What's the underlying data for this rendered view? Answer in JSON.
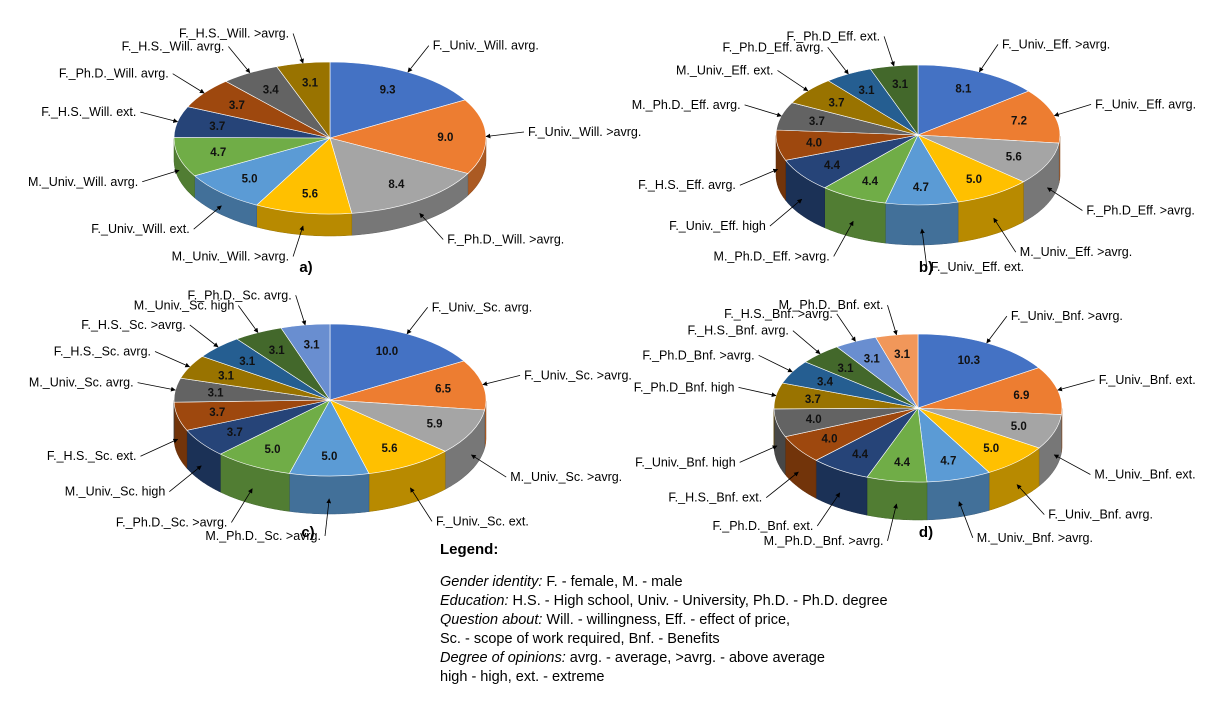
{
  "chart_data": [
    {
      "type": "pie",
      "panel_label": "a)",
      "slices": [
        {
          "label": "F._Univ._Will. avrg.",
          "value": 9.3,
          "color": "#4472c4"
        },
        {
          "label": "F._Univ._Will. >avrg.",
          "value": 9.0,
          "color": "#ed7d31"
        },
        {
          "label": "F._Ph.D._Will. >avrg.",
          "value": 8.4,
          "color": "#a5a5a5"
        },
        {
          "label": "M._Univ._Will. >avrg.",
          "value": 5.6,
          "color": "#ffc000"
        },
        {
          "label": "F._Univ._Will. ext.",
          "value": 5.0,
          "color": "#5b9bd5"
        },
        {
          "label": "M._Univ._Will. avrg.",
          "value": 4.7,
          "color": "#70ad47"
        },
        {
          "label": "F._H.S._Will. ext.",
          "value": 3.7,
          "color": "#264478"
        },
        {
          "label": "F._Ph.D._Will. avrg.",
          "value": 3.7,
          "color": "#9e480e"
        },
        {
          "label": "F._H.S._Will. avrg.",
          "value": 3.4,
          "color": "#636363"
        },
        {
          "label": "F._H.S._Will. >avrg.",
          "value": 3.1,
          "color": "#997300"
        }
      ]
    },
    {
      "type": "pie",
      "panel_label": "b)",
      "slices": [
        {
          "label": "F._Univ._Eff. >avrg.",
          "value": 8.1,
          "color": "#4472c4"
        },
        {
          "label": "F._Univ._Eff. avrg.",
          "value": 7.2,
          "color": "#ed7d31"
        },
        {
          "label": "F._Ph.D_Eff. >avrg.",
          "value": 5.6,
          "color": "#a5a5a5"
        },
        {
          "label": "M._Univ._Eff. >avrg.",
          "value": 5.0,
          "color": "#ffc000"
        },
        {
          "label": "F._Univ._Eff. ext.",
          "value": 4.7,
          "color": "#5b9bd5"
        },
        {
          "label": "M._Ph.D._Eff. >avrg.",
          "value": 4.4,
          "color": "#70ad47"
        },
        {
          "label": "F._Univ._Eff. high",
          "value": 4.4,
          "color": "#264478"
        },
        {
          "label": "F._H.S._Eff. avrg.",
          "value": 4.0,
          "color": "#9e480e"
        },
        {
          "label": "M._Ph.D._Eff. avrg.",
          "value": 3.7,
          "color": "#636363"
        },
        {
          "label": "M._Univ._Eff. ext.",
          "value": 3.7,
          "color": "#997300"
        },
        {
          "label": "F._Ph.D_Eff. avrg.",
          "value": 3.1,
          "color": "#255e91"
        },
        {
          "label": "F._Ph.D_Eff. ext.",
          "value": 3.1,
          "color": "#43682b"
        }
      ]
    },
    {
      "type": "pie",
      "panel_label": "c)",
      "slices": [
        {
          "label": "F._Univ._Sc. avrg.",
          "value": 10.0,
          "color": "#4472c4"
        },
        {
          "label": "F._Univ._Sc. >avrg.",
          "value": 6.5,
          "color": "#ed7d31"
        },
        {
          "label": "M._Univ._Sc. >avrg.",
          "value": 5.9,
          "color": "#a5a5a5"
        },
        {
          "label": "F._Univ._Sc. ext.",
          "value": 5.6,
          "color": "#ffc000"
        },
        {
          "label": "M._Ph.D._Sc. >avrg.",
          "value": 5.0,
          "color": "#5b9bd5"
        },
        {
          "label": "F._Ph.D._Sc. >avrg.",
          "value": 5.0,
          "color": "#70ad47"
        },
        {
          "label": "M._Univ._Sc. high",
          "value": 3.7,
          "color": "#264478"
        },
        {
          "label": "F._H.S._Sc. ext.",
          "value": 3.7,
          "color": "#9e480e"
        },
        {
          "label": "M._Univ._Sc. avrg.",
          "value": 3.1,
          "color": "#636363"
        },
        {
          "label": "F._H.S._Sc. avrg.",
          "value": 3.1,
          "color": "#997300"
        },
        {
          "label": "F._H.S._Sc. >avrg.",
          "value": 3.1,
          "color": "#255e91"
        },
        {
          "label": "M._Univ._Sc. high",
          "value": 3.1,
          "color": "#43682b"
        },
        {
          "label": "F._Ph.D._Sc. avrg.",
          "value": 3.1,
          "color": "#698ed0"
        }
      ]
    },
    {
      "type": "pie",
      "panel_label": "d)",
      "slices": [
        {
          "label": "F._Univ._Bnf. >avrg.",
          "value": 10.3,
          "color": "#4472c4"
        },
        {
          "label": "F._Univ._Bnf. ext.",
          "value": 6.9,
          "color": "#ed7d31"
        },
        {
          "label": "M._Univ._Bnf. ext.",
          "value": 5.0,
          "color": "#a5a5a5"
        },
        {
          "label": "F._Univ._Bnf. avrg.",
          "value": 5.0,
          "color": "#ffc000"
        },
        {
          "label": "M._Univ._Bnf. >avrg.",
          "value": 4.7,
          "color": "#5b9bd5"
        },
        {
          "label": "M._Ph.D._Bnf. >avrg.",
          "value": 4.4,
          "color": "#70ad47"
        },
        {
          "label": "F._Ph.D._Bnf. ext.",
          "value": 4.4,
          "color": "#264478"
        },
        {
          "label": "F._H.S._Bnf. ext.",
          "value": 4.0,
          "color": "#9e480e"
        },
        {
          "label": "F._Univ._Bnf. high",
          "value": 4.0,
          "color": "#636363"
        },
        {
          "label": "F._Ph.D_Bnf. high",
          "value": 3.7,
          "color": "#997300"
        },
        {
          "label": "F._Ph.D_Bnf. >avrg.",
          "value": 3.4,
          "color": "#255e91"
        },
        {
          "label": "F._H.S._Bnf. avrg.",
          "value": 3.1,
          "color": "#43682b"
        },
        {
          "label": "F._H.S._Bnf. >avrg.",
          "value": 3.1,
          "color": "#698ed0"
        },
        {
          "label": "M._Ph.D._Bnf. ext.",
          "value": 3.1,
          "color": "#f1975a"
        }
      ]
    }
  ],
  "legend": {
    "title": "Legend:",
    "lines": [
      {
        "key": "Gender identity:",
        "text": " F. - female, M. - male"
      },
      {
        "key": "Education:",
        "text": " H.S. - High school, Univ. - University, Ph.D. - Ph.D. degree"
      },
      {
        "key": "Question about:",
        "text": " Will. - willingness, Eff. - effect of price,"
      },
      {
        "key": "",
        "text": "Sc. - scope of work required, Bnf. - Benefits"
      },
      {
        "key": "Degree of opinions:",
        "text": " avrg. - average, >avrg. - above average"
      },
      {
        "key": "",
        "text": "high - high, ext. - extreme"
      }
    ]
  }
}
